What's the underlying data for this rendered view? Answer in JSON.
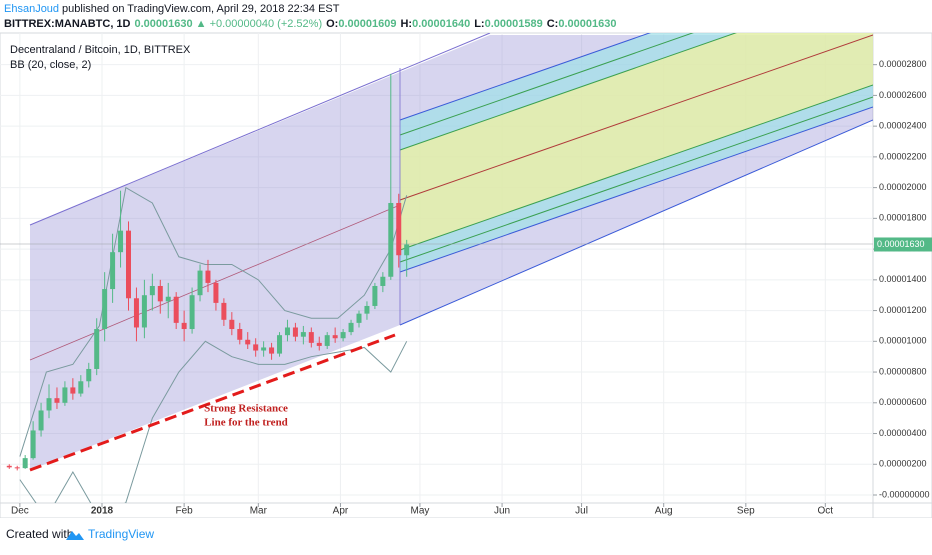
{
  "header": {
    "author": "EhsanJoud",
    "published": "published on TradingView.com, April 29, 2018 22:34 EST",
    "symbol": "BITTREX:MANABTC, 1D",
    "last": "0.00001630",
    "change": "▲ +0.00000040 (+2.52%)",
    "open_label": "O:",
    "open": "0.00001609",
    "high_label": "H:",
    "high": "0.00001640",
    "low_label": "L:",
    "low": "0.00001589",
    "close_label": "C:",
    "close": "0.00001630"
  },
  "chart_data": {
    "type": "candlestick",
    "title": "Decentraland / Bitcoin, 1D, BITTREX",
    "up_color": "#53b987",
    "down_color": "#eb4d5c",
    "grid": true,
    "xlim": [
      -7.5,
      322
    ],
    "xticks": [
      {
        "value": 0,
        "label": "Dec"
      },
      {
        "value": 31,
        "label": "2018"
      },
      {
        "value": 62,
        "label": "Feb"
      },
      {
        "value": 90,
        "label": "Mar"
      },
      {
        "value": 121,
        "label": "Apr"
      },
      {
        "value": 151,
        "label": "May"
      },
      {
        "value": 182,
        "label": "Jun"
      },
      {
        "value": 212,
        "label": "Jul"
      },
      {
        "value": 243,
        "label": "Aug"
      },
      {
        "value": 274,
        "label": "Sep"
      },
      {
        "value": 304,
        "label": "Oct"
      }
    ],
    "ylim": [
      -5.2e-07,
      3.006e-05
    ],
    "yticks": [
      {
        "value": 0,
        "label": "-0.00000000"
      },
      {
        "value": 2e-06,
        "label": "0.00000200"
      },
      {
        "value": 4e-06,
        "label": "0.00000400"
      },
      {
        "value": 6e-06,
        "label": "0.00000600"
      },
      {
        "value": 8e-06,
        "label": "0.00000800"
      },
      {
        "value": 1e-05,
        "label": "0.00001000"
      },
      {
        "value": 1.2e-05,
        "label": "0.00001200"
      },
      {
        "value": 1.4e-05,
        "label": "0.00001400"
      },
      {
        "value": 1.6e-05,
        "label": "0.00001600"
      },
      {
        "value": 1.8e-05,
        "label": "0.00001800"
      },
      {
        "value": 2e-05,
        "label": "0.00002000"
      },
      {
        "value": 2.2e-05,
        "label": "0.00002200"
      },
      {
        "value": 2.4e-05,
        "label": "0.00002400"
      },
      {
        "value": 2.6e-05,
        "label": "0.00002600"
      },
      {
        "value": 2.8e-05,
        "label": "0.00002800"
      }
    ],
    "x": [
      -4,
      -1,
      2,
      5,
      8,
      11,
      14,
      17,
      20,
      23,
      26,
      29,
      32,
      35,
      38,
      41,
      44,
      47,
      50,
      53,
      56,
      59,
      62,
      65,
      68,
      71,
      74,
      77,
      80,
      83,
      86,
      89,
      92,
      95,
      98,
      101,
      104,
      107,
      110,
      113,
      116,
      119,
      122,
      125,
      128,
      131,
      134,
      137,
      140,
      143,
      146
    ],
    "open": [
      1.9e-06,
      1.8e-06,
      1.75e-06,
      2.4e-06,
      4.2e-06,
      5.5e-06,
      6.3e-06,
      6e-06,
      7e-06,
      6.6e-06,
      7.4e-06,
      8.2e-06,
      1.08e-05,
      1.34e-05,
      1.58e-05,
      1.72e-05,
      1.28e-05,
      1.09e-05,
      1.3e-05,
      1.36e-05,
      1.26e-05,
      1.29e-05,
      1.12e-05,
      1.08e-05,
      1.3e-05,
      1.46e-05,
      1.38e-05,
      1.25e-05,
      1.14e-05,
      1.08e-05,
      1.01e-05,
      9.8e-06,
      9.4e-06,
      9.6e-06,
      9.2e-06,
      1.04e-05,
      1.09e-05,
      1.03e-05,
      1.06e-05,
      9.9e-06,
      9.7e-06,
      1.04e-05,
      1.02e-05,
      1.06e-05,
      1.12e-05,
      1.18e-05,
      1.23e-05,
      1.36e-05,
      1.42e-05,
      1.9e-05,
      1.56e-05
    ],
    "high": [
      2e-06,
      1.9e-06,
      2.6e-06,
      4.8e-06,
      6e-06,
      7.2e-06,
      7e-06,
      7.4e-06,
      7.6e-06,
      7.8e-06,
      8.6e-06,
      1.15e-05,
      1.45e-05,
      1.7e-05,
      1.98e-05,
      1.78e-05,
      1.35e-05,
      1.4e-05,
      1.44e-05,
      1.4e-05,
      1.38e-05,
      1.32e-05,
      1.2e-05,
      1.35e-05,
      1.5e-05,
      1.53e-05,
      1.4e-05,
      1.28e-05,
      1.19e-05,
      1.12e-05,
      1.06e-05,
      1.02e-05,
      1e-05,
      9.9e-06,
      1.06e-05,
      1.14e-05,
      1.12e-05,
      1.1e-05,
      1.09e-05,
      1.03e-05,
      1.06e-05,
      1.09e-05,
      1.08e-05,
      1.14e-05,
      1.2e-05,
      1.26e-05,
      1.38e-05,
      1.45e-05,
      2.74e-05,
      1.96e-05,
      1.66e-05
    ],
    "low": [
      1.7e-06,
      1.6e-06,
      1.7e-06,
      2.3e-06,
      3.8e-06,
      5e-06,
      5.6e-06,
      5.8e-06,
      6.2e-06,
      6.4e-06,
      7e-06,
      7.8e-06,
      1e-05,
      1.25e-05,
      1.48e-05,
      1.2e-05,
      1e-05,
      1.02e-05,
      1.2e-05,
      1.18e-05,
      1.15e-05,
      1.08e-05,
      1e-05,
      1.05e-05,
      1.26e-05,
      1.32e-05,
      1.2e-05,
      1.1e-05,
      1.04e-05,
      9.8e-06,
      9.5e-06,
      9e-06,
      9e-06,
      8.8e-06,
      9e-06,
      1e-05,
      1e-05,
      9.8e-06,
      9.6e-06,
      9.4e-06,
      9.5e-06,
      9.9e-06,
      1e-05,
      1.04e-05,
      1.09e-05,
      1.14e-05,
      1.21e-05,
      1.32e-05,
      1.4e-05,
      1.48e-05,
      1.42e-05
    ],
    "close": [
      1.8e-06,
      1.75e-06,
      2.4e-06,
      4.2e-06,
      5.5e-06,
      6.3e-06,
      6e-06,
      7e-06,
      6.6e-06,
      7.4e-06,
      8.2e-06,
      1.08e-05,
      1.34e-05,
      1.58e-05,
      1.72e-05,
      1.28e-05,
      1.09e-05,
      1.3e-05,
      1.36e-05,
      1.26e-05,
      1.29e-05,
      1.12e-05,
      1.08e-05,
      1.3e-05,
      1.46e-05,
      1.38e-05,
      1.25e-05,
      1.14e-05,
      1.08e-05,
      1.01e-05,
      9.8e-06,
      9.4e-06,
      9.6e-06,
      9.2e-06,
      1.04e-05,
      1.09e-05,
      1.03e-05,
      1.06e-05,
      9.9e-06,
      9.7e-06,
      1.04e-05,
      1.02e-05,
      1.06e-05,
      1.12e-05,
      1.18e-05,
      1.23e-05,
      1.36e-05,
      1.42e-05,
      1.9e-05,
      1.56e-05,
      1.63e-05
    ],
    "last_price": {
      "value": 1.63e-05,
      "label": "0.00001630"
    },
    "bb": {
      "name": "BB (20, close, 2)",
      "color": "#7a9a9e",
      "x": [
        0,
        10,
        20,
        30,
        40,
        50,
        60,
        70,
        80,
        90,
        100,
        110,
        120,
        130,
        140,
        146
      ],
      "upper": [
        2.5e-06,
        8e-06,
        8.5e-06,
        1.1e-05,
        2e-05,
        1.9e-05,
        1.55e-05,
        1.5e-05,
        1.5e-05,
        1.4e-05,
        1.2e-05,
        1.15e-05,
        1.15e-05,
        1.3e-05,
        1.6e-05,
        1.95e-05
      ],
      "lower": [
        1e-06,
        -1.5e-06,
        1.5e-06,
        -1.5e-06,
        -5e-07,
        5e-06,
        8e-06,
        1e-05,
        9e-06,
        8.5e-06,
        8.5e-06,
        9e-06,
        9.3e-06,
        9.6e-06,
        8e-06,
        1e-05
      ]
    },
    "annotation": [
      "Strong Resistance",
      "Line for the trend"
    ]
  },
  "footer": {
    "created": "Created with",
    "brand": "TradingView"
  }
}
